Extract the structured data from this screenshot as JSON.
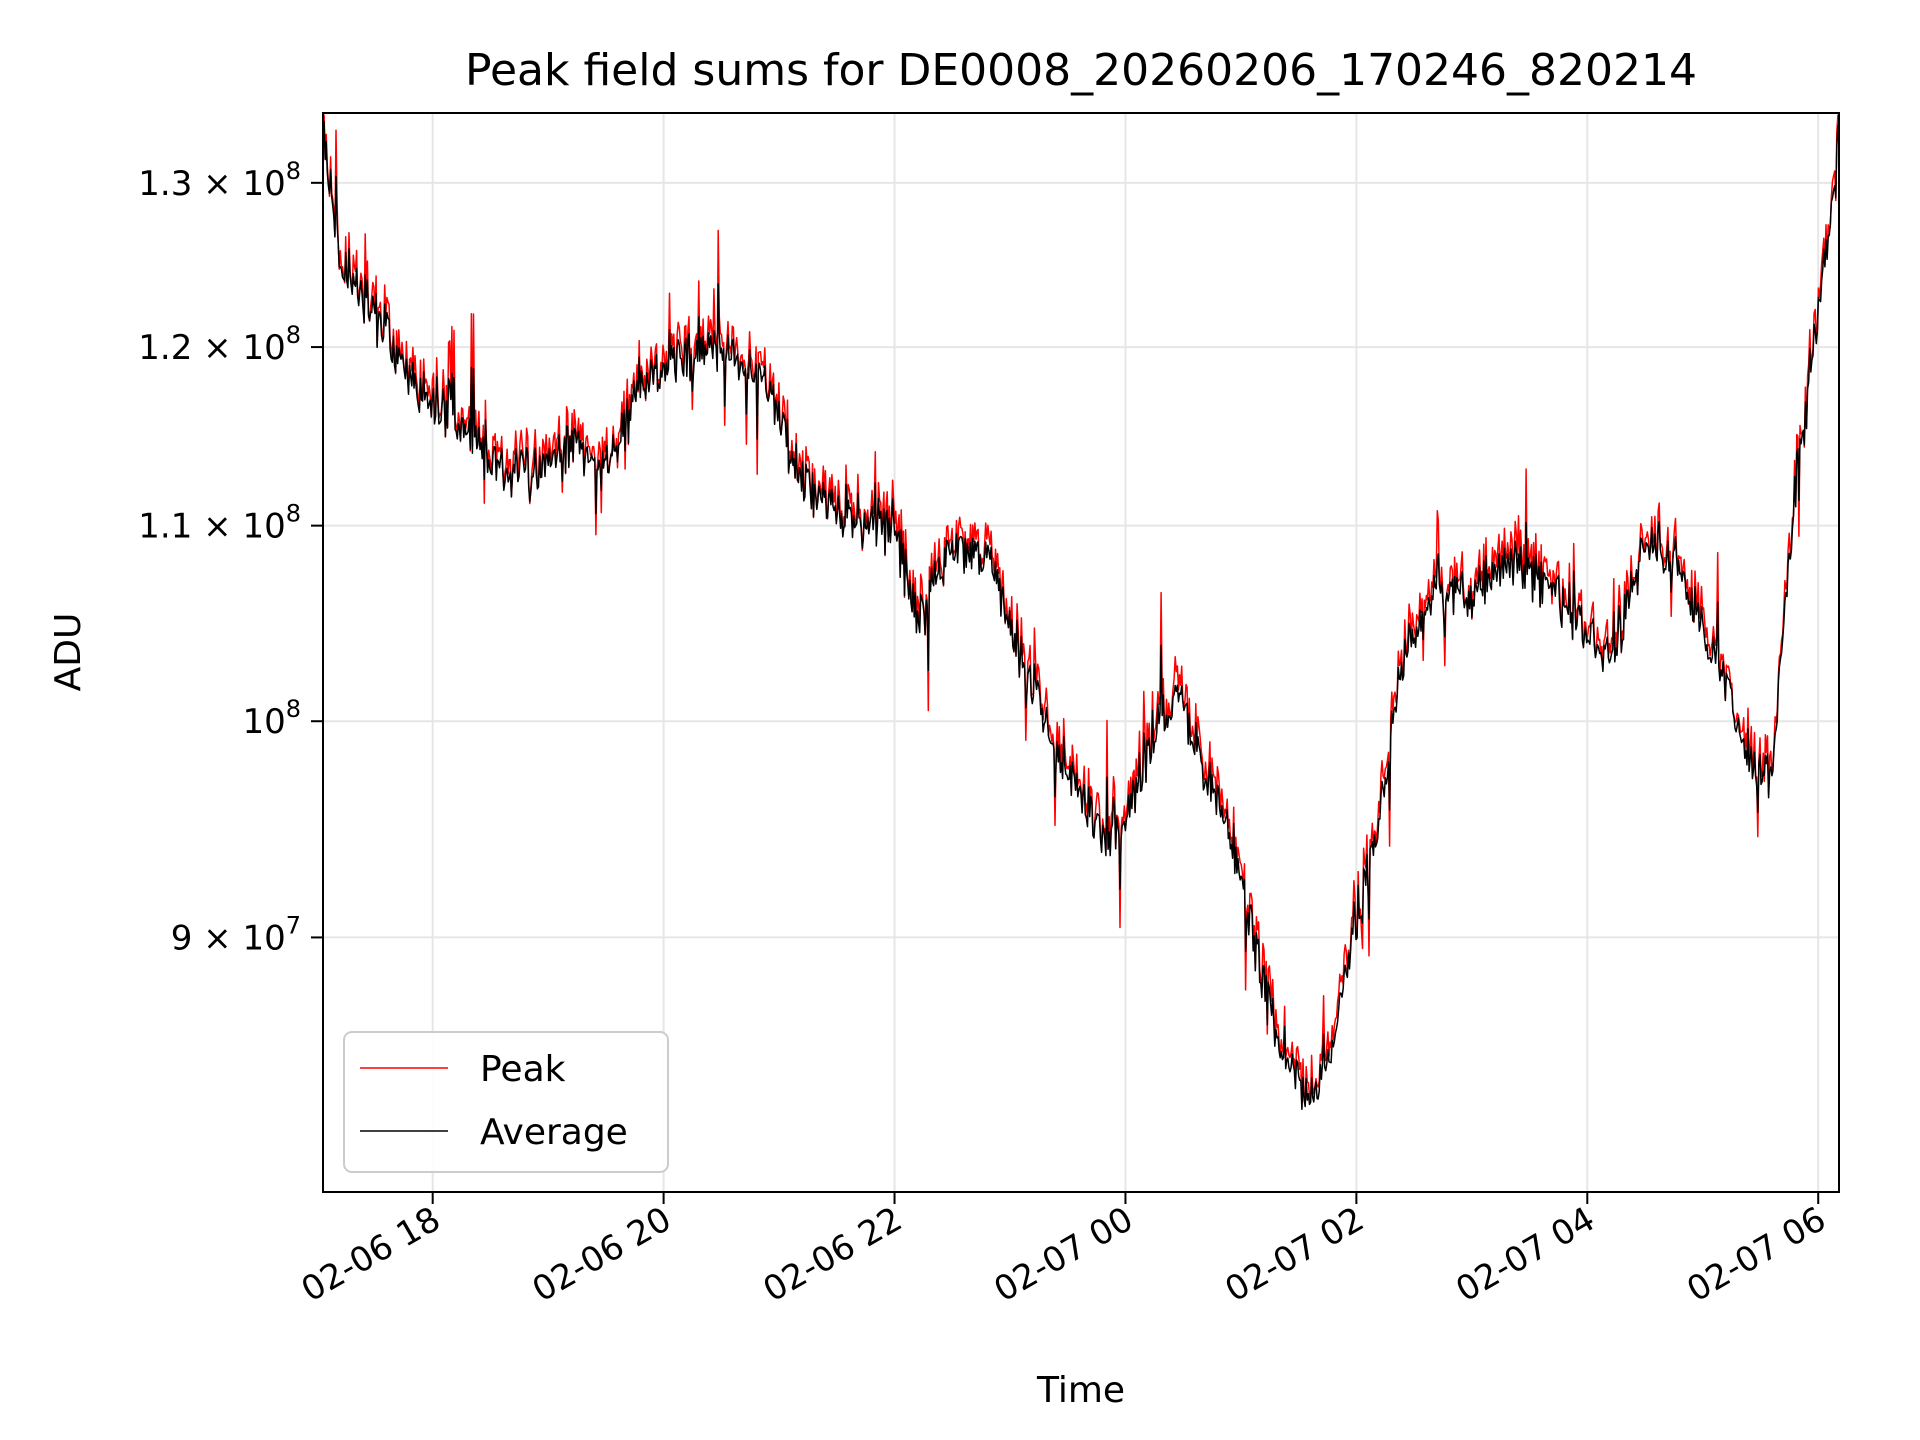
{
  "chart_data": {
    "type": "line",
    "title": "Peak field sums for DE0008_20260206_170246_820214",
    "xlabel": "Time",
    "ylabel": "ADU",
    "yscale": "log",
    "grid": true,
    "legend_position": "lower-left",
    "x_range_hours": [
      17.05,
      30.18
    ],
    "ylim": [
      79500000,
      134500000
    ],
    "x_ticks": [
      {
        "hours": 18,
        "label": "02-06 18"
      },
      {
        "hours": 20,
        "label": "02-06 20"
      },
      {
        "hours": 22,
        "label": "02-06 22"
      },
      {
        "hours": 24,
        "label": "02-07 00"
      },
      {
        "hours": 26,
        "label": "02-07 02"
      },
      {
        "hours": 28,
        "label": "02-07 04"
      },
      {
        "hours": 30,
        "label": "02-07 06"
      }
    ],
    "y_ticks": [
      {
        "value": 90000000,
        "base": "9 × 10",
        "exp": "7"
      },
      {
        "value": 100000000,
        "base": "10",
        "exp": "8"
      },
      {
        "value": 110000000,
        "base": "1.1 × 10",
        "exp": "8"
      },
      {
        "value": 120000000,
        "base": "1.2 × 10",
        "exp": "8"
      },
      {
        "value": 130000000,
        "base": "1.3 × 10",
        "exp": "8"
      }
    ],
    "series": [
      {
        "name": "Peak",
        "color": "#ff0000",
        "x_hours": [
          17.05,
          17.2,
          17.4,
          17.6,
          17.8,
          18.0,
          18.3,
          18.6,
          18.9,
          19.2,
          19.5,
          19.8,
          20.0,
          20.3,
          20.6,
          20.9,
          21.2,
          21.5,
          21.8,
          22.0,
          22.2,
          22.5,
          22.8,
          23.0,
          23.2,
          23.5,
          23.8,
          24.0,
          24.3,
          24.5,
          24.7,
          24.9,
          25.0,
          25.2,
          25.4,
          25.6,
          25.8,
          26.0,
          26.2,
          26.4,
          26.7,
          27.0,
          27.3,
          27.6,
          27.9,
          28.2,
          28.5,
          28.8,
          29.0,
          29.2,
          29.4,
          29.6,
          29.8,
          30.0,
          30.18
        ],
        "values": [
          133800000,
          125500000,
          123300000,
          121200000,
          118500000,
          117200000,
          115800000,
          113500000,
          113200000,
          115200000,
          113400000,
          118500000,
          119300000,
          120000000,
          119800000,
          118200000,
          113000000,
          111200000,
          110800000,
          110300000,
          105400000,
          109600000,
          108500000,
          105800000,
          101700000,
          98200000,
          95000000,
          95900000,
          100800000,
          101300000,
          97500000,
          95300000,
          93300000,
          88300000,
          85500000,
          83500000,
          85800000,
          91600000,
          95500000,
          103500000,
          107000000,
          106900000,
          108200000,
          107700000,
          105900000,
          103200000,
          109700000,
          108500000,
          104700000,
          102700000,
          98600000,
          97900000,
          112500000,
          122400000,
          133000000
        ]
      },
      {
        "name": "Average",
        "color": "#000000",
        "x_hours": [
          17.05,
          17.2,
          17.4,
          17.6,
          17.8,
          18.0,
          18.3,
          18.6,
          18.9,
          19.2,
          19.5,
          19.8,
          20.0,
          20.3,
          20.6,
          20.9,
          21.2,
          21.5,
          21.8,
          22.0,
          22.2,
          22.5,
          22.8,
          23.0,
          23.2,
          23.5,
          23.8,
          24.0,
          24.3,
          24.5,
          24.7,
          24.9,
          25.0,
          25.2,
          25.4,
          25.6,
          25.8,
          26.0,
          26.2,
          26.4,
          26.7,
          27.0,
          27.3,
          27.6,
          27.9,
          28.2,
          28.5,
          28.8,
          29.0,
          29.2,
          29.4,
          29.6,
          29.8,
          30.0,
          30.18
        ],
        "values": [
          133300000,
          125000000,
          122800000,
          120700000,
          118000000,
          116700000,
          115300000,
          113000000,
          112700000,
          114700000,
          112900000,
          118000000,
          118800000,
          119500000,
          119300000,
          117700000,
          112500000,
          110700000,
          110300000,
          109800000,
          104900000,
          109100000,
          108000000,
          105300000,
          101200000,
          97700000,
          94500000,
          95400000,
          100300000,
          100800000,
          97000000,
          94800000,
          92800000,
          87800000,
          85000000,
          83000000,
          85300000,
          91100000,
          95000000,
          103000000,
          106500000,
          106400000,
          107700000,
          107200000,
          105400000,
          102700000,
          109200000,
          108000000,
          104200000,
          102200000,
          98100000,
          97400000,
          112000000,
          121900000,
          132500000
        ]
      }
    ]
  }
}
